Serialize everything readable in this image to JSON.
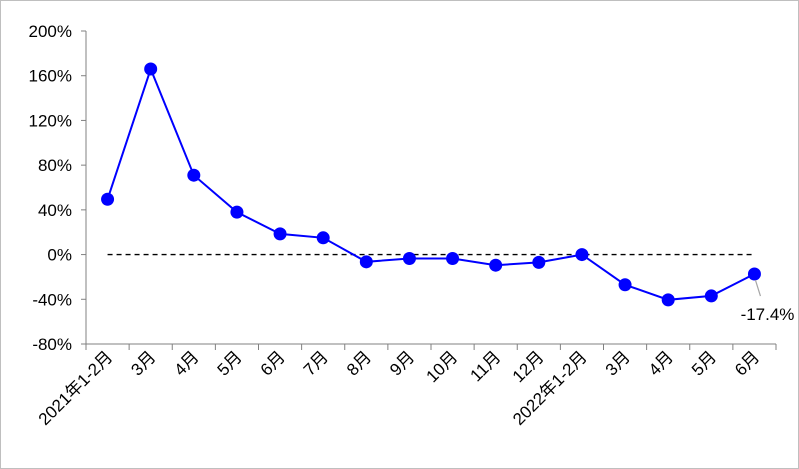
{
  "chart_data": {
    "type": "line",
    "title": "",
    "xlabel": "",
    "ylabel": "",
    "categories": [
      "2021年1-2月",
      "3月",
      "4月",
      "5月",
      "6月",
      "7月",
      "8月",
      "9月",
      "10月",
      "11月",
      "12月",
      "2022年1-2月",
      "3月",
      "4月",
      "5月",
      "6月"
    ],
    "series": [
      {
        "values": [
          49.5,
          166,
          71,
          38,
          18.5,
          15,
          -6.5,
          -3.5,
          -3.5,
          -9.5,
          -7,
          0,
          -27,
          -40.5,
          -37,
          -17.4
        ]
      }
    ],
    "ylim": [
      -80,
      200
    ],
    "yticks": [
      -80,
      -40,
      0,
      40,
      80,
      120,
      160,
      200
    ],
    "ytick_labels": [
      "-80%",
      "-40%",
      "0%",
      "40%",
      "80%",
      "120%",
      "160%",
      "200%"
    ],
    "reference_line": {
      "y": 0,
      "style": "dashed"
    },
    "annotation": {
      "index": 15,
      "text": "-17.4%"
    },
    "grid": false,
    "legend": "none",
    "colors": {
      "line": "#0000ff",
      "marker": "#0000ff",
      "axis": "#808080",
      "reference": "#000000",
      "leader": "#a6a6a6"
    }
  }
}
